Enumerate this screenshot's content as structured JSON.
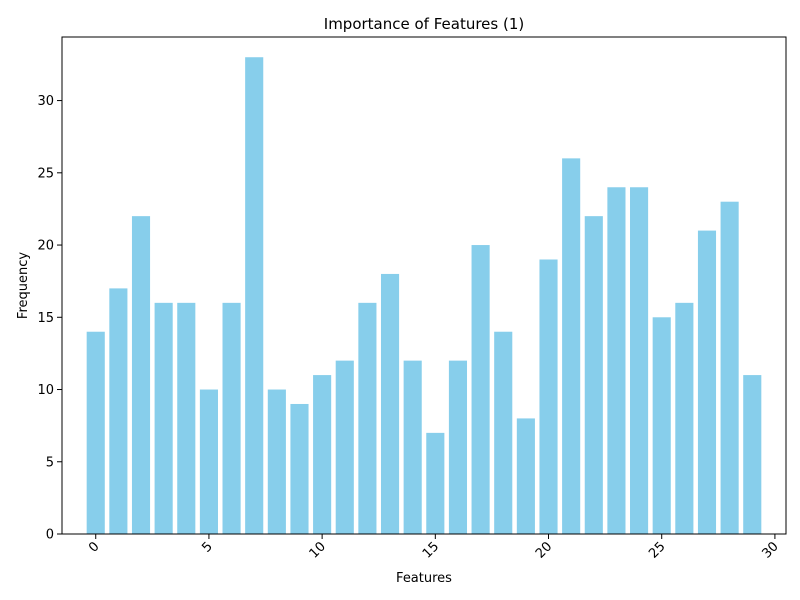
{
  "chart_data": {
    "type": "bar",
    "title": "Importance of Features (1)",
    "xlabel": "Features",
    "ylabel": "Frequency",
    "x": [
      0,
      1,
      2,
      3,
      4,
      5,
      6,
      7,
      8,
      9,
      10,
      11,
      12,
      13,
      14,
      15,
      16,
      17,
      18,
      19,
      20,
      21,
      22,
      23,
      24,
      25,
      26,
      27,
      28,
      29
    ],
    "values": [
      14,
      17,
      22,
      16,
      16,
      10,
      16,
      33,
      10,
      9,
      11,
      12,
      16,
      18,
      12,
      7,
      12,
      20,
      14,
      8,
      19,
      26,
      22,
      24,
      24,
      15,
      16,
      21,
      23,
      11
    ],
    "xlim": [
      -1.49,
      30.49
    ],
    "ylim": [
      0,
      34.4
    ],
    "xticks": [
      0,
      5,
      10,
      15,
      20,
      25,
      30
    ],
    "yticks": [
      0,
      5,
      10,
      15,
      20,
      25,
      30
    ],
    "bar_color": "#87CEEB",
    "grid": false,
    "legend": "none"
  }
}
